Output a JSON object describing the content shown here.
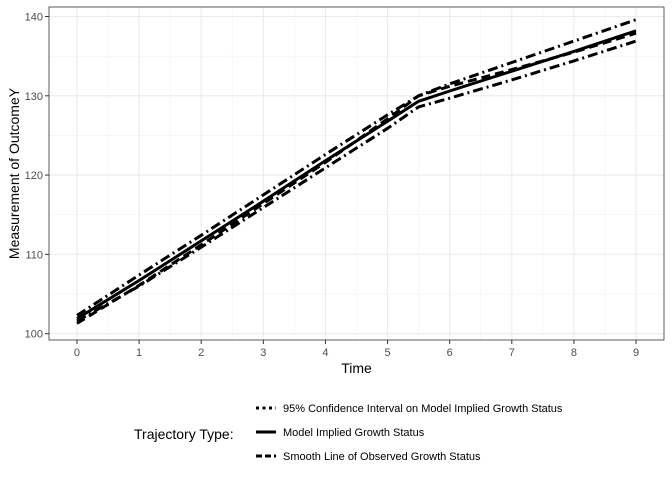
{
  "chart_data": {
    "type": "line",
    "title": "",
    "xlabel": "Time",
    "ylabel": "Measurement of OutcomeY",
    "xlim": [
      -0.45,
      9.45
    ],
    "ylim": [
      99.2,
      141.2
    ],
    "x_ticks": [
      0,
      1,
      2,
      3,
      4,
      5,
      6,
      7,
      8,
      9
    ],
    "y_ticks": [
      100,
      110,
      120,
      130,
      140
    ],
    "grid": true,
    "legend": {
      "title": "Trajectory Type:",
      "position": "bottom",
      "entries": [
        "95% Confidence Interval on Model Implied Growth Status",
        "Model Implied Growth Status",
        "Smooth Line of Observed Growth Status"
      ]
    },
    "series": [
      {
        "name": "Model Implied Growth Status",
        "style": "solid",
        "x": [
          0,
          1,
          2,
          3,
          4,
          5,
          5.5,
          6,
          7,
          8,
          9
        ],
        "y": [
          101.9,
          106.7,
          111.7,
          116.7,
          121.8,
          126.8,
          129.3,
          130.6,
          133.1,
          135.6,
          138.2
        ]
      },
      {
        "name": "Smooth Line of Observed Growth Status",
        "style": "dashed",
        "x": [
          0,
          1,
          2,
          3,
          4,
          5,
          5.5,
          6,
          7,
          8,
          9
        ],
        "y": [
          101.3,
          106.1,
          111.2,
          116.4,
          121.6,
          127.1,
          130.0,
          131.2,
          133.3,
          135.5,
          137.9
        ]
      },
      {
        "name": "95% Confidence Interval on Model Implied Growth Status",
        "style": "dashdot",
        "x": [
          0,
          1,
          2,
          3,
          4,
          5,
          5.5,
          6,
          7,
          8,
          9
        ],
        "y": [
          102.3,
          107.4,
          112.4,
          117.5,
          122.6,
          127.6,
          130.0,
          131.5,
          134.2,
          136.9,
          139.6
        ]
      },
      {
        "name": "95% Confidence Interval on Model Implied Growth Status",
        "style": "dashdot",
        "x": [
          0,
          1,
          2,
          3,
          4,
          5,
          5.5,
          6,
          7,
          8,
          9
        ],
        "y": [
          101.6,
          106.0,
          110.9,
          115.9,
          120.9,
          125.9,
          128.6,
          129.7,
          132.0,
          134.4,
          136.9
        ]
      }
    ]
  }
}
